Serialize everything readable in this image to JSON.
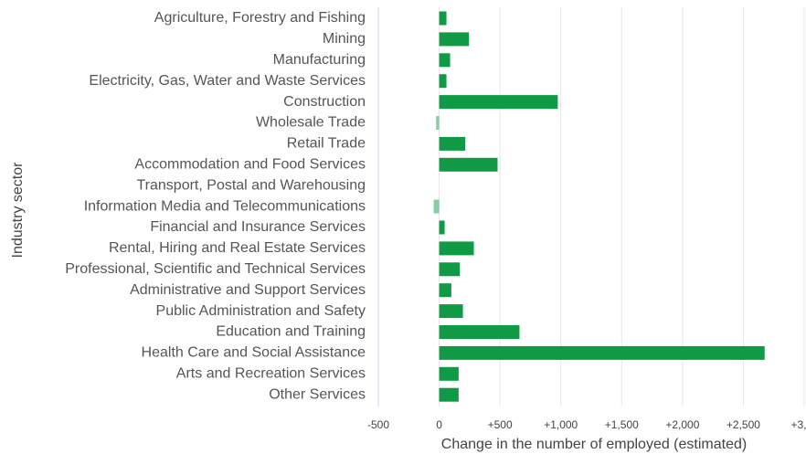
{
  "chart_data": {
    "type": "barh",
    "x_label": "Change in the number of employed (estimated)",
    "y_label": "Industry sector",
    "categories": [
      "Agriculture, Forestry and Fishing",
      "Mining",
      "Manufacturing",
      "Electricity, Gas, Water and Waste Services",
      "Construction",
      "Wholesale Trade",
      "Retail Trade",
      "Accommodation and Food Services",
      "Transport, Postal and Warehousing",
      "Information Media and Telecommunications",
      "Financial and Insurance Services",
      "Rental, Hiring and Real Estate Services",
      "Professional, Scientific and Technical Services",
      "Administrative and Support Services",
      "Public Administration and Safety",
      "Education and Training",
      "Health Care and Social Assistance",
      "Arts and Recreation Services",
      "Other Services"
    ],
    "values": [
      60,
      245,
      90,
      60,
      975,
      -25,
      215,
      480,
      0,
      -45,
      45,
      285,
      170,
      100,
      195,
      660,
      2675,
      160,
      160
    ],
    "color": "#109a46",
    "negative_color": "#85cfa5",
    "xlim": [
      -500,
      3000
    ],
    "xticks": [
      -500,
      0,
      {
        "value": 500,
        "label": "+500"
      },
      {
        "value": 1000,
        "label": "+1,000"
      },
      {
        "value": 1500,
        "label": "+1,500"
      },
      {
        "value": 2000,
        "label": "+2,000"
      },
      {
        "value": 2500,
        "label": "+2,500"
      },
      {
        "value": 3000,
        "label": "+3,…"
      }
    ],
    "grid": true
  }
}
